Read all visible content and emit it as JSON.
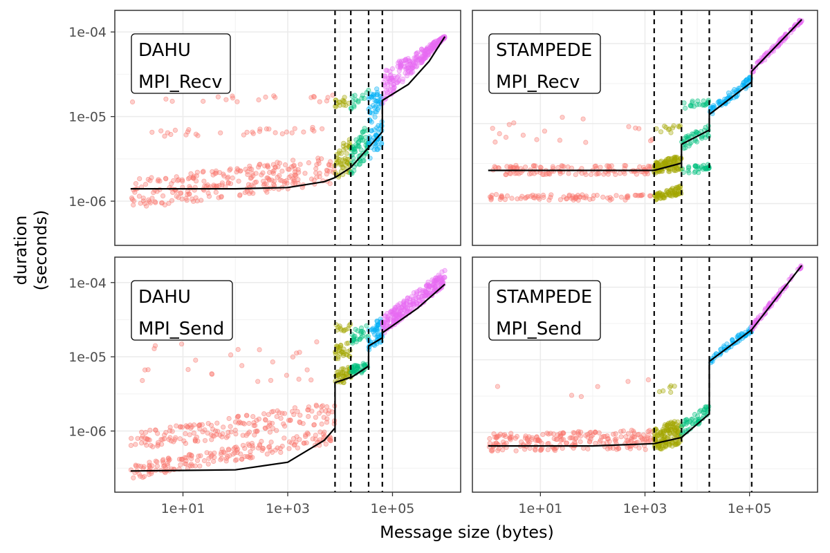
{
  "chart_data": {
    "type": "scatter",
    "xlabel": "Message size (bytes)",
    "ylabel_line1": "duration",
    "ylabel_line2": "(seconds)",
    "x_scale": "log10",
    "y_scale": "log10",
    "x_ticks": [
      {
        "value": 10,
        "label": "1e+01"
      },
      {
        "value": 1000,
        "label": "1e+03"
      },
      {
        "value": 100000,
        "label": "1e+05"
      }
    ],
    "y_ticks": [
      {
        "value": 1e-06,
        "label": "1e-06"
      },
      {
        "value": 1e-05,
        "label": "1e-05"
      },
      {
        "value": 0.0001,
        "label": "1e-04"
      }
    ],
    "xlim": [
      0.5,
      2000000
    ],
    "grid": true,
    "legend": "none",
    "regime_colors": [
      "#F8766D",
      "#A3A500",
      "#00BF7D",
      "#00B0F6",
      "#E76BF3"
    ],
    "panels": [
      {
        "id": "dahu-recv",
        "label_line1": "DAHU",
        "label_line2": "MPI_Recv",
        "ylim": [
          3e-07,
          0.00018
        ],
        "breakpoints": [
          8000,
          16000,
          35000,
          64000
        ],
        "fit": [
          [
            1,
            1.4e-06
          ],
          [
            100,
            1.4e-06
          ],
          [
            1000,
            1.45e-06
          ],
          [
            5000,
            1.7e-06
          ],
          [
            8000,
            1.9e-06
          ],
          [
            16000,
            2.5e-06
          ],
          [
            35000,
            4.3e-06
          ],
          [
            64000,
            6.6e-06
          ],
          [
            64000,
            1.55e-05
          ],
          [
            200000,
            2.4e-05
          ],
          [
            500000,
            4.5e-05
          ],
          [
            1000000,
            8.8e-05
          ]
        ],
        "bands": [
          {
            "regime": 0,
            "x": [
              1,
              8000
            ],
            "y_lo": [
              8e-07,
              1.6e-06
            ],
            "y_hi": [
              1.8e-06,
              3.5e-06
            ],
            "points": 260
          },
          {
            "regime": 0,
            "x": [
              1,
              8000
            ],
            "y_lo": [
              5.5e-06,
              6.5e-06
            ],
            "y_hi": [
              7e-06,
              7.5e-06
            ],
            "points": 30
          },
          {
            "regime": 0,
            "x": [
              1,
              8000
            ],
            "y_lo": [
              1.4e-05,
              1.5e-05
            ],
            "y_hi": [
              1.7e-05,
              1.8e-05
            ],
            "points": 20
          },
          {
            "regime": 1,
            "x": [
              8000,
              16000
            ],
            "y_lo": [
              1.8e-06,
              2.2e-06
            ],
            "y_hi": [
              4e-06,
              6e-06
            ],
            "points": 50
          },
          {
            "regime": 1,
            "x": [
              8000,
              16000
            ],
            "y_lo": [
              1.2e-05,
              1.4e-05
            ],
            "y_hi": [
              1.6e-05,
              1.8e-05
            ],
            "points": 15
          },
          {
            "regime": 2,
            "x": [
              16000,
              35000
            ],
            "y_lo": [
              2e-06,
              3.5e-06
            ],
            "y_hi": [
              5e-06,
              8.5e-06
            ],
            "points": 60
          },
          {
            "regime": 2,
            "x": [
              16000,
              35000
            ],
            "y_lo": [
              1.2e-05,
              1.6e-05
            ],
            "y_hi": [
              1.8e-05,
              2.2e-05
            ],
            "points": 15
          },
          {
            "regime": 3,
            "x": [
              35000,
              64000
            ],
            "y_lo": [
              3e-06,
              4.5e-06
            ],
            "y_hi": [
              6.5e-06,
              9e-06
            ],
            "points": 40
          },
          {
            "regime": 3,
            "x": [
              35000,
              64000
            ],
            "y_lo": [
              8e-06,
              1.1e-05
            ],
            "y_hi": [
              1.8e-05,
              2.5e-05
            ],
            "points": 40
          },
          {
            "regime": 4,
            "x": [
              64000,
              1000000
            ],
            "y_lo": [
              1.4e-05,
              8.5e-05
            ],
            "y_hi": [
              3.5e-05,
              9e-05
            ],
            "points": 220
          }
        ]
      },
      {
        "id": "stampede-recv",
        "label_line1": "STAMPEDE",
        "label_line2": "MPI_Recv",
        "ylim": [
          3e-07,
          0.00026
        ],
        "breakpoints": [
          1500,
          5000,
          17000,
          110000
        ],
        "fit": [
          [
            1,
            2.6e-06
          ],
          [
            100,
            2.6e-06
          ],
          [
            1500,
            2.6e-06
          ],
          [
            5000,
            3.2e-06
          ],
          [
            5000,
            5.5e-06
          ],
          [
            17000,
            8.3e-06
          ],
          [
            17000,
            1.3e-05
          ],
          [
            110000,
            3.3e-05
          ],
          [
            110000,
            4.5e-05
          ],
          [
            1000000,
            0.0002
          ]
        ],
        "bands": [
          {
            "regime": 0,
            "x": [
              1,
              1500
            ],
            "y_lo": [
              2.3e-06,
              2.3e-06
            ],
            "y_hi": [
              3e-06,
              3e-06
            ],
            "points": 120
          },
          {
            "regime": 0,
            "x": [
              1,
              1500
            ],
            "y_lo": [
              1.1e-06,
              1.1e-06
            ],
            "y_hi": [
              1.3e-06,
              1.3e-06
            ],
            "points": 80
          },
          {
            "regime": 0,
            "x": [
              1,
              1500
            ],
            "y_lo": [
              5e-06,
              5e-06
            ],
            "y_hi": [
              1.2e-05,
              1.2e-05
            ],
            "points": 18
          },
          {
            "regime": 1,
            "x": [
              1500,
              5000
            ],
            "y_lo": [
              2.4e-06,
              2.6e-06
            ],
            "y_hi": [
              3.3e-06,
              4e-06
            ],
            "points": 110
          },
          {
            "regime": 1,
            "x": [
              1500,
              5000
            ],
            "y_lo": [
              1.1e-06,
              1.3e-06
            ],
            "y_hi": [
              1.3e-06,
              1.7e-06
            ],
            "points": 70
          },
          {
            "regime": 1,
            "x": [
              1500,
              5000
            ],
            "y_lo": [
              7e-06,
              8e-06
            ],
            "y_hi": [
              9e-06,
              1e-05
            ],
            "points": 12
          },
          {
            "regime": 2,
            "x": [
              5000,
              17000
            ],
            "y_lo": [
              4.5e-06,
              7e-06
            ],
            "y_hi": [
              6.5e-06,
              9.5e-06
            ],
            "points": 40
          },
          {
            "regime": 2,
            "x": [
              5000,
              17000
            ],
            "y_lo": [
              2.2e-06,
              2.6e-06
            ],
            "y_hi": [
              2.8e-06,
              3.2e-06
            ],
            "points": 30
          },
          {
            "regime": 2,
            "x": [
              5000,
              17000
            ],
            "y_lo": [
              1.5e-05,
              1.7e-05
            ],
            "y_hi": [
              1.9e-05,
              2.2e-05
            ],
            "points": 20
          },
          {
            "regime": 3,
            "x": [
              17000,
              110000
            ],
            "y_lo": [
              1.2e-05,
              3e-05
            ],
            "y_hi": [
              1.6e-05,
              4e-05
            ],
            "points": 70
          },
          {
            "regime": 4,
            "x": [
              110000,
              1000000
            ],
            "y_lo": [
              4e-05,
              0.00019
            ],
            "y_hi": [
              5e-05,
              0.00021
            ],
            "points": 90
          }
        ]
      },
      {
        "id": "dahu-send",
        "label_line1": "DAHU",
        "label_line2": "MPI_Send",
        "ylim": [
          1.5e-07,
          0.00022
        ],
        "breakpoints": [
          8000,
          16000,
          35000,
          64000
        ],
        "fit": [
          [
            1,
            2.9e-07
          ],
          [
            100,
            3e-07
          ],
          [
            1000,
            3.8e-07
          ],
          [
            5000,
            7.5e-07
          ],
          [
            8000,
            1.1e-06
          ],
          [
            8000,
            4.5e-06
          ],
          [
            16000,
            5.3e-06
          ],
          [
            16000,
            5.2e-06
          ],
          [
            35000,
            7.5e-06
          ],
          [
            35000,
            1.4e-05
          ],
          [
            64000,
            1.8e-05
          ],
          [
            64000,
            2.1e-05
          ],
          [
            300000,
            4.5e-05
          ],
          [
            1000000,
            9.5e-05
          ]
        ],
        "bands": [
          {
            "regime": 0,
            "x": [
              1,
              8000
            ],
            "y_lo": [
              2.2e-07,
              7e-07
            ],
            "y_hi": [
              3.5e-07,
              1.1e-06
            ],
            "points": 180
          },
          {
            "regime": 0,
            "x": [
              1,
              8000
            ],
            "y_lo": [
              5.5e-07,
              1.2e-06
            ],
            "y_hi": [
              9.5e-07,
              2.5e-06
            ],
            "points": 180
          },
          {
            "regime": 0,
            "x": [
              1,
              8000
            ],
            "y_lo": [
              4.5e-06,
              4.5e-06
            ],
            "y_hi": [
              1.6e-05,
              1.6e-05
            ],
            "points": 25
          },
          {
            "regime": 1,
            "x": [
              8000,
              16000
            ],
            "y_lo": [
              4e-06,
              4.8e-06
            ],
            "y_hi": [
              6.5e-06,
              7.5e-06
            ],
            "points": 40
          },
          {
            "regime": 1,
            "x": [
              8000,
              16000
            ],
            "y_lo": [
              9e-06,
              1e-05
            ],
            "y_hi": [
              1.4e-05,
              1.6e-05
            ],
            "points": 30
          },
          {
            "regime": 1,
            "x": [
              8000,
              16000
            ],
            "y_lo": [
              2.2e-05,
              2.2e-05
            ],
            "y_hi": [
              2.8e-05,
              2.8e-05
            ],
            "points": 12
          },
          {
            "regime": 2,
            "x": [
              16000,
              35000
            ],
            "y_lo": [
              5.5e-06,
              6.5e-06
            ],
            "y_hi": [
              7.5e-06,
              9e-06
            ],
            "points": 40
          },
          {
            "regime": 2,
            "x": [
              16000,
              35000
            ],
            "y_lo": [
              1.5e-05,
              1.8e-05
            ],
            "y_hi": [
              2.2e-05,
              2.8e-05
            ],
            "points": 25
          },
          {
            "regime": 3,
            "x": [
              35000,
              64000
            ],
            "y_lo": [
              1.2e-05,
              1.6e-05
            ],
            "y_hi": [
              2.5e-05,
              3.5e-05
            ],
            "points": 50
          },
          {
            "regime": 4,
            "x": [
              64000,
              1000000
            ],
            "y_lo": [
              2e-05,
              9e-05
            ],
            "y_hi": [
              3.5e-05,
              0.00015
            ],
            "points": 240
          }
        ]
      },
      {
        "id": "stampede-send",
        "label_line1": "STAMPEDE",
        "label_line2": "MPI_Send",
        "ylim": [
          1.5e-07,
          0.00026
        ],
        "breakpoints": [
          1500,
          5000,
          17000,
          110000
        ],
        "fit": [
          [
            1,
            6.5e-07
          ],
          [
            100,
            6.5e-07
          ],
          [
            1500,
            7e-07
          ],
          [
            5000,
            8.5e-07
          ],
          [
            17000,
            1.8e-06
          ],
          [
            17000,
            9.5e-06
          ],
          [
            110000,
            2.6e-05
          ],
          [
            1000000,
            0.0002
          ]
        ],
        "bands": [
          {
            "regime": 0,
            "x": [
              1,
              1500
            ],
            "y_lo": [
              5.5e-07,
              5.8e-07
            ],
            "y_hi": [
              9.5e-07,
              1.1e-06
            ],
            "points": 220
          },
          {
            "regime": 0,
            "x": [
              1,
              1500
            ],
            "y_lo": [
              3e-06,
              3e-06
            ],
            "y_hi": [
              6e-06,
              6e-06
            ],
            "points": 6
          },
          {
            "regime": 1,
            "x": [
              1500,
              5000
            ],
            "y_lo": [
              5.5e-07,
              7e-07
            ],
            "y_hi": [
              1.1e-06,
              1.6e-06
            ],
            "points": 140
          },
          {
            "regime": 1,
            "x": [
              1500,
              5000
            ],
            "y_lo": [
              3.5e-06,
              3.5e-06
            ],
            "y_hi": [
              4.5e-06,
              4.5e-06
            ],
            "points": 6
          },
          {
            "regime": 2,
            "x": [
              5000,
              17000
            ],
            "y_lo": [
              9e-07,
              1.6e-06
            ],
            "y_hi": [
              1.4e-06,
              2.5e-06
            ],
            "points": 50
          },
          {
            "regime": 3,
            "x": [
              17000,
              110000
            ],
            "y_lo": [
              8.8e-06,
              2.4e-05
            ],
            "y_hi": [
              1.1e-05,
              3e-05
            ],
            "points": 60
          },
          {
            "regime": 4,
            "x": [
              110000,
              1000000
            ],
            "y_lo": [
              2.5e-05,
              0.00019
            ],
            "y_hi": [
              3e-05,
              0.00021
            ],
            "points": 80
          }
        ]
      }
    ]
  }
}
